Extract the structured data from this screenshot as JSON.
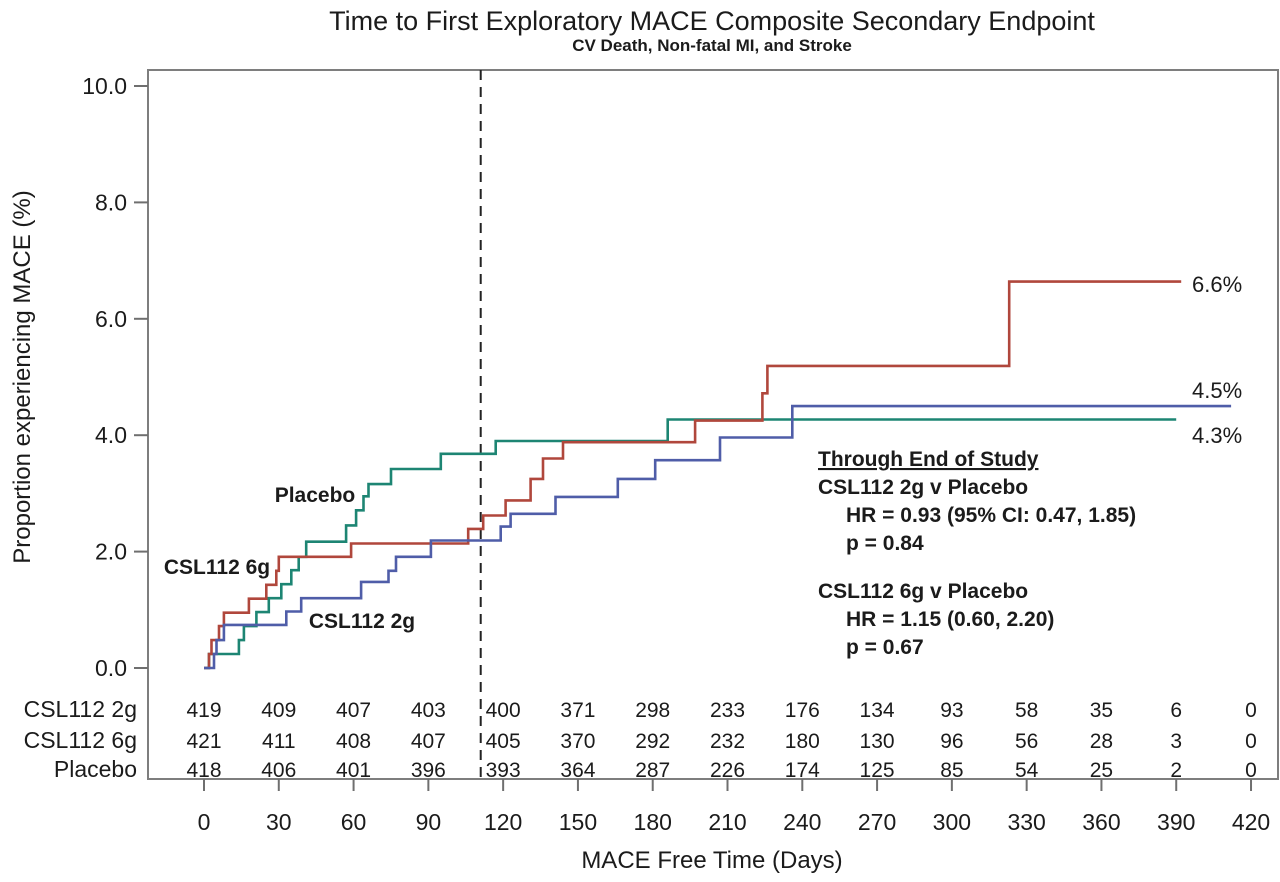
{
  "title": "Time to First Exploratory MACE Composite Secondary Endpoint",
  "subtitle": "CV Death, Non-fatal MI, and Stroke",
  "chart_data": {
    "type": "line",
    "subtype": "kaplan-meier-step-curves",
    "title": "Time to First Exploratory MACE Composite Secondary Endpoint",
    "subtitle": "CV Death, Non-fatal MI, and Stroke",
    "xlabel": "MACE Free Time (Days)",
    "ylabel": "Proportion experiencing MACE (%)",
    "xlim": [
      0,
      420
    ],
    "ylim": [
      0.0,
      10.0
    ],
    "x_ticks": [
      0,
      30,
      60,
      90,
      120,
      150,
      180,
      210,
      240,
      270,
      300,
      330,
      360,
      390,
      420
    ],
    "y_ticks": [
      0.0,
      2.0,
      4.0,
      6.0,
      8.0,
      10.0
    ],
    "grid": "off",
    "legend_position": "inline-curve-labels",
    "reference_line_x": 111,
    "series": [
      {
        "name": "CSL112 2g",
        "color": "#4f5da8",
        "end_label": "4.5%",
        "end_day": 412,
        "steps_day_pct": [
          [
            0,
            0
          ],
          [
            4,
            0.24
          ],
          [
            5,
            0.48
          ],
          [
            8,
            0.74
          ],
          [
            33,
            0.97
          ],
          [
            39,
            1.2
          ],
          [
            63,
            1.48
          ],
          [
            74,
            1.67
          ],
          [
            77,
            1.91
          ],
          [
            91,
            2.19
          ],
          [
            119,
            2.43
          ],
          [
            123,
            2.65
          ],
          [
            141,
            2.94
          ],
          [
            166,
            3.25
          ],
          [
            181,
            3.57
          ],
          [
            207,
            3.96
          ],
          [
            236,
            4.5
          ]
        ]
      },
      {
        "name": "CSL112 6g",
        "color": "#b0473c",
        "end_label": "6.6%",
        "end_day": 392,
        "steps_day_pct": [
          [
            0,
            0
          ],
          [
            2,
            0.24
          ],
          [
            3,
            0.48
          ],
          [
            6,
            0.72
          ],
          [
            8,
            0.95
          ],
          [
            18,
            1.19
          ],
          [
            25,
            1.43
          ],
          [
            29,
            1.67
          ],
          [
            30,
            1.91
          ],
          [
            59,
            2.14
          ],
          [
            106,
            2.39
          ],
          [
            112,
            2.62
          ],
          [
            121,
            2.88
          ],
          [
            131,
            3.25
          ],
          [
            136,
            3.6
          ],
          [
            144,
            3.88
          ],
          [
            197,
            4.25
          ],
          [
            224,
            4.72
          ],
          [
            226,
            5.19
          ],
          [
            323,
            6.64
          ]
        ]
      },
      {
        "name": "Placebo",
        "color": "#1d8573",
        "end_label": "4.3%",
        "end_day": 390,
        "steps_day_pct": [
          [
            0,
            0
          ],
          [
            2,
            0.24
          ],
          [
            14,
            0.48
          ],
          [
            16,
            0.72
          ],
          [
            21,
            0.96
          ],
          [
            26,
            1.2
          ],
          [
            31,
            1.44
          ],
          [
            35,
            1.68
          ],
          [
            38,
            1.91
          ],
          [
            41,
            2.17
          ],
          [
            57,
            2.45
          ],
          [
            61,
            2.71
          ],
          [
            64,
            2.95
          ],
          [
            66,
            3.16
          ],
          [
            75,
            3.42
          ],
          [
            95,
            3.68
          ],
          [
            117,
            3.9
          ],
          [
            186,
            4.27
          ]
        ]
      }
    ],
    "curve_labels": {
      "csl112_2g": "CSL112 2g",
      "csl112_6g": "CSL112 6g",
      "placebo": "Placebo"
    },
    "annotation": {
      "lines": [
        "Through End of Study",
        "CSL112 2g v Placebo",
        "HR = 0.93 (95% CI: 0.47, 1.85)",
        "p = 0.84",
        "CSL112 6g v Placebo",
        "HR = 1.15 (0.60, 2.20)",
        "p = 0.67"
      ]
    },
    "risk_table": {
      "days": [
        0,
        30,
        60,
        90,
        120,
        150,
        180,
        210,
        240,
        270,
        300,
        330,
        360,
        390,
        420
      ],
      "rows": [
        {
          "label": "CSL112 2g",
          "color": "#4f5da8",
          "values": [
            419,
            409,
            407,
            403,
            400,
            371,
            298,
            233,
            176,
            134,
            93,
            58,
            35,
            6,
            0
          ]
        },
        {
          "label": "CSL112 6g",
          "color": "#b0473c",
          "values": [
            421,
            411,
            408,
            407,
            405,
            370,
            292,
            232,
            180,
            130,
            96,
            56,
            28,
            3,
            0
          ]
        },
        {
          "label": "Placebo",
          "color": "#1d8573",
          "values": [
            418,
            406,
            401,
            396,
            393,
            364,
            287,
            226,
            174,
            125,
            85,
            54,
            25,
            2,
            0
          ]
        }
      ]
    }
  }
}
